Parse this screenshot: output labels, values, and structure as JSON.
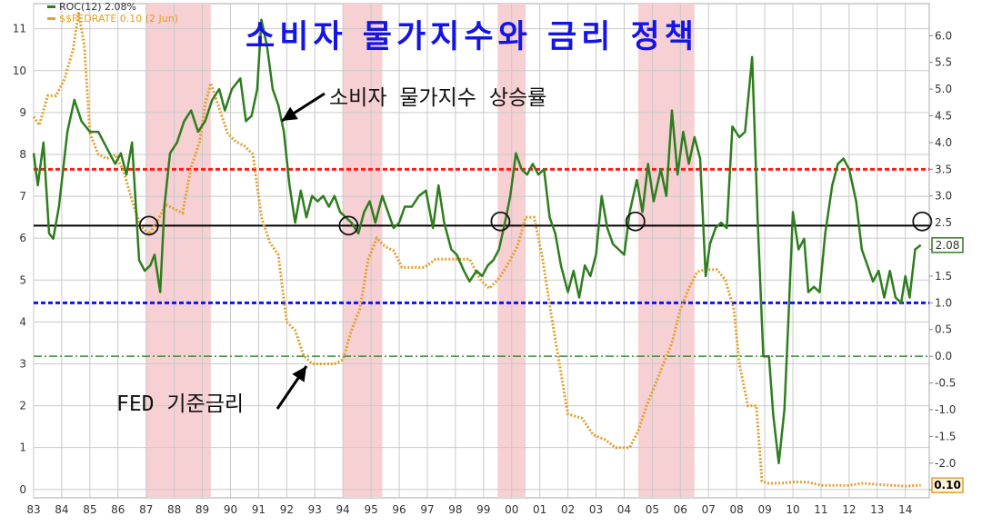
{
  "title": "소비자 물가지수와 금리 정책",
  "legend": {
    "cpi_label": "ROC(12) 2.08%",
    "fed_label": "$$FEDRATE 0.10 (2 Jun)"
  },
  "annotations": {
    "cpi": "소비자 물가지수 상승률",
    "fed": "FED 기준금리"
  },
  "colors": {
    "cpi": "#2e7d1e",
    "fed": "#e2a030",
    "recession": "#f7d0d3",
    "red_line": "#ff1a1a",
    "blue_line": "#1010ff",
    "zero_line": "#3a8a3a",
    "mid_line": "#000000",
    "title": "#1414e6",
    "grid": "#c9c9c9"
  },
  "chart_data": {
    "type": "line",
    "x_axis": {
      "range": [
        1983.0,
        2014.85
      ],
      "tick_labels": [
        "83",
        "84",
        "85",
        "86",
        "87",
        "88",
        "89",
        "90",
        "91",
        "92",
        "93",
        "94",
        "95",
        "96",
        "97",
        "98",
        "99",
        "00",
        "01",
        "02",
        "03",
        "04",
        "05",
        "06",
        "07",
        "08",
        "09",
        "10",
        "11",
        "12",
        "13",
        "14"
      ]
    },
    "y_left": {
      "range": [
        -0.2,
        11.6
      ],
      "tick_labels": [
        "0",
        "1",
        "2",
        "3",
        "4",
        "5",
        "6",
        "7",
        "8",
        "9",
        "10",
        "11"
      ]
    },
    "y_right": {
      "range": [
        -2.65,
        6.6
      ],
      "tick_labels": [
        "-2.5",
        "-2.0",
        "-1.5",
        "-1.0",
        "-0.5",
        "0.0",
        "0.5",
        "1.0",
        "1.5",
        "2.0",
        "2.5",
        "3.0",
        "3.5",
        "4.0",
        "4.5",
        "5.0",
        "5.5",
        "6.0"
      ],
      "tick_values": [
        -2.5,
        -2.0,
        -1.5,
        -1.0,
        -0.5,
        0.0,
        0.5,
        1.0,
        1.5,
        2.0,
        2.5,
        3.0,
        3.5,
        4.0,
        4.5,
        5.0,
        5.5,
        6.0
      ]
    },
    "shaded_periods": [
      [
        1987.0,
        1989.3
      ],
      [
        1994.0,
        1995.4
      ],
      [
        1999.5,
        2000.5
      ],
      [
        2004.5,
        2006.5
      ]
    ],
    "reference_lines": [
      {
        "axis": "right",
        "value": 3.5,
        "style": "red-dashed"
      },
      {
        "axis": "right",
        "value": 1.0,
        "style": "blue-dashed"
      },
      {
        "axis": "right",
        "value": 0.0,
        "style": "green-dashdot"
      },
      {
        "axis": "left",
        "value": 6.3,
        "style": "black-solid"
      }
    ],
    "circle_markers": [
      [
        1987.1,
        6.3
      ],
      [
        1994.2,
        6.3
      ],
      [
        1999.6,
        6.4
      ],
      [
        2004.4,
        6.4
      ],
      [
        2014.6,
        6.4
      ]
    ],
    "end_badges": [
      {
        "label": "2.08",
        "axis": "right",
        "value": 2.08,
        "series": "ROC(12)"
      },
      {
        "label": "0.10",
        "axis": "left",
        "value": 0.1,
        "series": "$$FEDRATE"
      }
    ],
    "series": [
      {
        "name": "ROC(12)",
        "axis": "right",
        "style": "solid",
        "points": [
          [
            1983.0,
            3.8
          ],
          [
            1983.15,
            3.2
          ],
          [
            1983.35,
            4.0
          ],
          [
            1983.55,
            2.3
          ],
          [
            1983.7,
            2.2
          ],
          [
            1983.9,
            2.8
          ],
          [
            1984.2,
            4.2
          ],
          [
            1984.45,
            4.8
          ],
          [
            1984.7,
            4.4
          ],
          [
            1985.0,
            4.2
          ],
          [
            1985.3,
            4.2
          ],
          [
            1985.6,
            3.9
          ],
          [
            1985.9,
            3.6
          ],
          [
            1986.1,
            3.8
          ],
          [
            1986.3,
            3.4
          ],
          [
            1986.5,
            4.0
          ],
          [
            1986.75,
            1.8
          ],
          [
            1986.95,
            1.6
          ],
          [
            1987.15,
            1.7
          ],
          [
            1987.3,
            1.9
          ],
          [
            1987.5,
            1.2
          ],
          [
            1987.65,
            2.8
          ],
          [
            1987.85,
            3.8
          ],
          [
            1988.1,
            4.0
          ],
          [
            1988.35,
            4.4
          ],
          [
            1988.6,
            4.6
          ],
          [
            1988.85,
            4.2
          ],
          [
            1989.1,
            4.4
          ],
          [
            1989.35,
            4.8
          ],
          [
            1989.6,
            5.0
          ],
          [
            1989.8,
            4.6
          ],
          [
            1990.05,
            5.0
          ],
          [
            1990.35,
            5.2
          ],
          [
            1990.55,
            4.4
          ],
          [
            1990.75,
            4.5
          ],
          [
            1990.95,
            5.0
          ],
          [
            1991.1,
            6.3
          ],
          [
            1991.3,
            5.8
          ],
          [
            1991.5,
            5.0
          ],
          [
            1991.7,
            4.7
          ],
          [
            1991.9,
            4.2
          ],
          [
            1992.1,
            3.2
          ],
          [
            1992.3,
            2.5
          ],
          [
            1992.5,
            3.1
          ],
          [
            1992.7,
            2.6
          ],
          [
            1992.9,
            3.0
          ],
          [
            1993.1,
            2.9
          ],
          [
            1993.3,
            3.0
          ],
          [
            1993.5,
            2.8
          ],
          [
            1993.7,
            3.0
          ],
          [
            1993.9,
            2.7
          ],
          [
            1994.1,
            2.6
          ],
          [
            1994.3,
            2.5
          ],
          [
            1994.55,
            2.3
          ],
          [
            1994.75,
            2.7
          ],
          [
            1994.95,
            2.9
          ],
          [
            1995.15,
            2.5
          ],
          [
            1995.4,
            3.0
          ],
          [
            1995.6,
            2.7
          ],
          [
            1995.8,
            2.4
          ],
          [
            1996.0,
            2.5
          ],
          [
            1996.2,
            2.8
          ],
          [
            1996.45,
            2.8
          ],
          [
            1996.7,
            3.0
          ],
          [
            1996.95,
            3.1
          ],
          [
            1997.2,
            2.4
          ],
          [
            1997.4,
            3.2
          ],
          [
            1997.6,
            2.5
          ],
          [
            1997.85,
            2.0
          ],
          [
            1998.05,
            1.9
          ],
          [
            1998.3,
            1.6
          ],
          [
            1998.5,
            1.4
          ],
          [
            1998.75,
            1.6
          ],
          [
            1998.95,
            1.5
          ],
          [
            1999.15,
            1.7
          ],
          [
            1999.35,
            1.8
          ],
          [
            1999.55,
            2.0
          ],
          [
            1999.8,
            2.6
          ],
          [
            1999.95,
            3.0
          ],
          [
            2000.15,
            3.8
          ],
          [
            2000.35,
            3.5
          ],
          [
            2000.55,
            3.4
          ],
          [
            2000.75,
            3.6
          ],
          [
            2000.95,
            3.4
          ],
          [
            2001.15,
            3.5
          ],
          [
            2001.35,
            2.6
          ],
          [
            2001.55,
            2.3
          ],
          [
            2001.75,
            1.7
          ],
          [
            2002.0,
            1.2
          ],
          [
            2002.2,
            1.6
          ],
          [
            2002.4,
            1.1
          ],
          [
            2002.6,
            1.7
          ],
          [
            2002.8,
            1.5
          ],
          [
            2003.0,
            1.9
          ],
          [
            2003.2,
            3.0
          ],
          [
            2003.4,
            2.4
          ],
          [
            2003.6,
            2.1
          ],
          [
            2003.8,
            2.0
          ],
          [
            2004.0,
            1.9
          ],
          [
            2004.2,
            2.7
          ],
          [
            2004.45,
            3.3
          ],
          [
            2004.65,
            2.7
          ],
          [
            2004.85,
            3.6
          ],
          [
            2005.05,
            2.9
          ],
          [
            2005.3,
            3.5
          ],
          [
            2005.5,
            3.0
          ],
          [
            2005.7,
            4.6
          ],
          [
            2005.9,
            3.4
          ],
          [
            2006.1,
            4.2
          ],
          [
            2006.3,
            3.6
          ],
          [
            2006.5,
            4.1
          ],
          [
            2006.7,
            3.7
          ],
          [
            2006.9,
            1.5
          ],
          [
            2007.05,
            2.1
          ],
          [
            2007.25,
            2.4
          ],
          [
            2007.45,
            2.5
          ],
          [
            2007.65,
            2.4
          ],
          [
            2007.85,
            4.3
          ],
          [
            2008.1,
            4.1
          ],
          [
            2008.3,
            4.2
          ],
          [
            2008.55,
            5.6
          ],
          [
            2008.75,
            2.5
          ],
          [
            2008.95,
            0.0
          ],
          [
            2009.15,
            0.0
          ],
          [
            2009.3,
            -1.1
          ],
          [
            2009.5,
            -2.0
          ],
          [
            2009.7,
            -1.0
          ],
          [
            2009.85,
            0.8
          ],
          [
            2010.0,
            2.7
          ],
          [
            2010.2,
            2.0
          ],
          [
            2010.4,
            2.2
          ],
          [
            2010.55,
            1.2
          ],
          [
            2010.75,
            1.3
          ],
          [
            2010.95,
            1.2
          ],
          [
            2011.15,
            2.3
          ],
          [
            2011.4,
            3.2
          ],
          [
            2011.6,
            3.6
          ],
          [
            2011.8,
            3.7
          ],
          [
            2012.0,
            3.5
          ],
          [
            2012.25,
            2.9
          ],
          [
            2012.45,
            2.0
          ],
          [
            2012.65,
            1.7
          ],
          [
            2012.85,
            1.4
          ],
          [
            2013.05,
            1.6
          ],
          [
            2013.25,
            1.1
          ],
          [
            2013.45,
            1.6
          ],
          [
            2013.65,
            1.1
          ],
          [
            2013.85,
            1.0
          ],
          [
            2014.0,
            1.5
          ],
          [
            2014.15,
            1.1
          ],
          [
            2014.35,
            2.0
          ],
          [
            2014.55,
            2.08
          ]
        ]
      },
      {
        "name": "$$FEDRATE",
        "axis": "left",
        "style": "dotted",
        "points": [
          [
            1983.0,
            8.9
          ],
          [
            1983.2,
            8.7
          ],
          [
            1983.5,
            9.4
          ],
          [
            1983.8,
            9.4
          ],
          [
            1984.1,
            9.8
          ],
          [
            1984.4,
            10.5
          ],
          [
            1984.6,
            11.4
          ],
          [
            1984.8,
            10.6
          ],
          [
            1985.0,
            8.5
          ],
          [
            1985.3,
            8.0
          ],
          [
            1985.6,
            7.9
          ],
          [
            1985.9,
            8.0
          ],
          [
            1986.2,
            7.6
          ],
          [
            1986.5,
            6.9
          ],
          [
            1986.8,
            6.3
          ],
          [
            1987.1,
            6.1
          ],
          [
            1987.4,
            6.4
          ],
          [
            1987.7,
            6.8
          ],
          [
            1988.0,
            6.7
          ],
          [
            1988.3,
            6.6
          ],
          [
            1988.6,
            7.7
          ],
          [
            1988.9,
            8.3
          ],
          [
            1989.1,
            9.2
          ],
          [
            1989.3,
            9.7
          ],
          [
            1989.6,
            9.1
          ],
          [
            1989.9,
            8.5
          ],
          [
            1990.2,
            8.3
          ],
          [
            1990.5,
            8.2
          ],
          [
            1990.8,
            8.0
          ],
          [
            1991.1,
            6.5
          ],
          [
            1991.4,
            5.9
          ],
          [
            1991.7,
            5.6
          ],
          [
            1992.0,
            4.0
          ],
          [
            1992.3,
            3.8
          ],
          [
            1992.6,
            3.2
          ],
          [
            1992.9,
            3.0
          ],
          [
            1993.3,
            3.0
          ],
          [
            1993.7,
            3.0
          ],
          [
            1994.0,
            3.1
          ],
          [
            1994.3,
            3.8
          ],
          [
            1994.6,
            4.3
          ],
          [
            1994.9,
            5.5
          ],
          [
            1995.2,
            6.0
          ],
          [
            1995.5,
            5.8
          ],
          [
            1995.8,
            5.7
          ],
          [
            1996.1,
            5.3
          ],
          [
            1996.5,
            5.3
          ],
          [
            1996.9,
            5.3
          ],
          [
            1997.3,
            5.5
          ],
          [
            1997.7,
            5.5
          ],
          [
            1998.1,
            5.5
          ],
          [
            1998.5,
            5.5
          ],
          [
            1998.9,
            5.0
          ],
          [
            1999.2,
            4.8
          ],
          [
            1999.5,
            5.0
          ],
          [
            1999.8,
            5.3
          ],
          [
            2000.2,
            5.8
          ],
          [
            2000.5,
            6.5
          ],
          [
            2000.8,
            6.5
          ],
          [
            2001.1,
            5.5
          ],
          [
            2001.4,
            4.2
          ],
          [
            2001.7,
            3.0
          ],
          [
            2002.0,
            1.8
          ],
          [
            2002.5,
            1.7
          ],
          [
            2002.9,
            1.3
          ],
          [
            2003.3,
            1.2
          ],
          [
            2003.7,
            1.0
          ],
          [
            2004.2,
            1.0
          ],
          [
            2004.5,
            1.4
          ],
          [
            2004.8,
            2.0
          ],
          [
            2005.1,
            2.5
          ],
          [
            2005.4,
            3.0
          ],
          [
            2005.7,
            3.5
          ],
          [
            2006.0,
            4.3
          ],
          [
            2006.3,
            4.8
          ],
          [
            2006.6,
            5.2
          ],
          [
            2006.9,
            5.25
          ],
          [
            2007.3,
            5.25
          ],
          [
            2007.6,
            5.0
          ],
          [
            2007.9,
            4.3
          ],
          [
            2008.1,
            3.0
          ],
          [
            2008.4,
            2.0
          ],
          [
            2008.7,
            2.0
          ],
          [
            2008.9,
            0.2
          ],
          [
            2009.1,
            0.15
          ],
          [
            2009.6,
            0.15
          ],
          [
            2010.0,
            0.18
          ],
          [
            2010.5,
            0.18
          ],
          [
            2011.0,
            0.1
          ],
          [
            2011.5,
            0.1
          ],
          [
            2012.0,
            0.1
          ],
          [
            2012.5,
            0.15
          ],
          [
            2013.0,
            0.12
          ],
          [
            2013.5,
            0.1
          ],
          [
            2014.0,
            0.08
          ],
          [
            2014.55,
            0.1
          ]
        ]
      }
    ]
  }
}
